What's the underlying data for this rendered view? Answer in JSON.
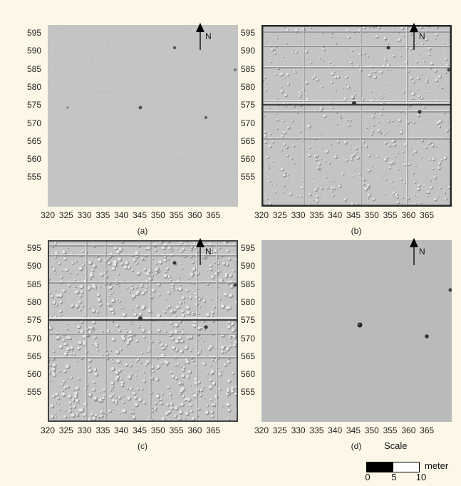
{
  "panels": [
    {
      "id": "a",
      "caption": "(a)",
      "style": "smooth"
    },
    {
      "id": "b",
      "caption": "(b)",
      "style": "medium"
    },
    {
      "id": "c",
      "caption": "(c)",
      "style": "rough"
    },
    {
      "id": "d",
      "caption": "(d)",
      "style": "flat"
    }
  ],
  "y_ticks": [
    "595",
    "590",
    "585",
    "580",
    "575",
    "570",
    "565",
    "560",
    "555"
  ],
  "x_ticks": [
    "320",
    "325",
    "330",
    "335",
    "340",
    "345",
    "350",
    "355",
    "360",
    "365"
  ],
  "north_label": "N",
  "scale": {
    "title": "Scale",
    "unit": "meter",
    "ticks": [
      "0",
      "5",
      "10"
    ]
  },
  "colors": {
    "background": "#fcf7e6",
    "map_gray": "#c4c4c4",
    "flat_gray": "#bababa",
    "text": "#222222"
  }
}
